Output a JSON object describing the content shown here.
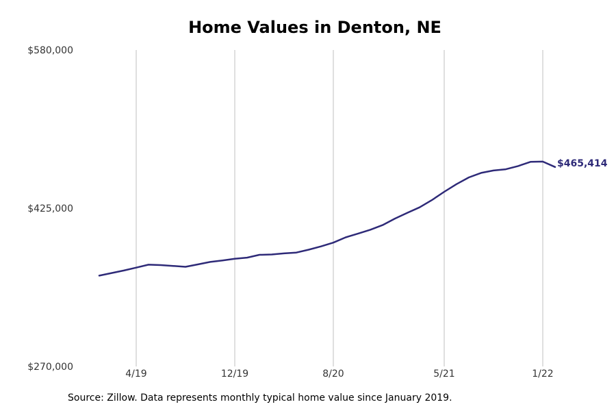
{
  "chart_data": {
    "type": "line",
    "title": "Home Values in Denton, NE",
    "xlabel": "",
    "ylabel": "",
    "ylim": [
      270000,
      580000
    ],
    "y_ticks": [
      "$580,000",
      "$425,000",
      "$270,000"
    ],
    "y_tick_values": [
      580000,
      425000,
      270000
    ],
    "x_ticks": [
      "4/19",
      "12/19",
      "8/20",
      "5/21",
      "1/22"
    ],
    "x_tick_dates": [
      "2019-04",
      "2019-12",
      "2020-08",
      "2021-05",
      "2022-01"
    ],
    "grid": "vertical",
    "line_color": "#2e2a78",
    "grid_color": "#bfbfbf",
    "end_label": "$465,414",
    "series": [
      {
        "x": [
          "2019-01",
          "2019-02",
          "2019-03",
          "2019-04",
          "2019-05",
          "2019-06",
          "2019-07",
          "2019-08",
          "2019-09",
          "2019-10",
          "2019-11",
          "2019-12",
          "2020-01",
          "2020-02",
          "2020-03",
          "2020-04",
          "2020-05",
          "2020-06",
          "2020-07",
          "2020-08",
          "2020-09",
          "2020-10",
          "2020-11",
          "2020-12",
          "2021-01",
          "2021-02",
          "2021-03",
          "2021-04",
          "2021-05",
          "2021-06",
          "2021-07",
          "2021-08",
          "2021-09",
          "2021-10",
          "2021-11",
          "2021-12",
          "2022-01",
          "2022-02"
        ],
        "values": [
          359000,
          361500,
          364000,
          366800,
          369700,
          369300,
          368500,
          367600,
          370000,
          372400,
          373800,
          375500,
          376600,
          379400,
          379700,
          380800,
          381600,
          384400,
          387600,
          391300,
          396500,
          400100,
          403900,
          408500,
          414900,
          420500,
          425900,
          433000,
          441100,
          448600,
          455200,
          459600,
          462000,
          463200,
          466300,
          470400,
          470700,
          465414
        ]
      }
    ]
  },
  "source_text": "Source: Zillow. Data represents monthly typical home value since January 2019."
}
